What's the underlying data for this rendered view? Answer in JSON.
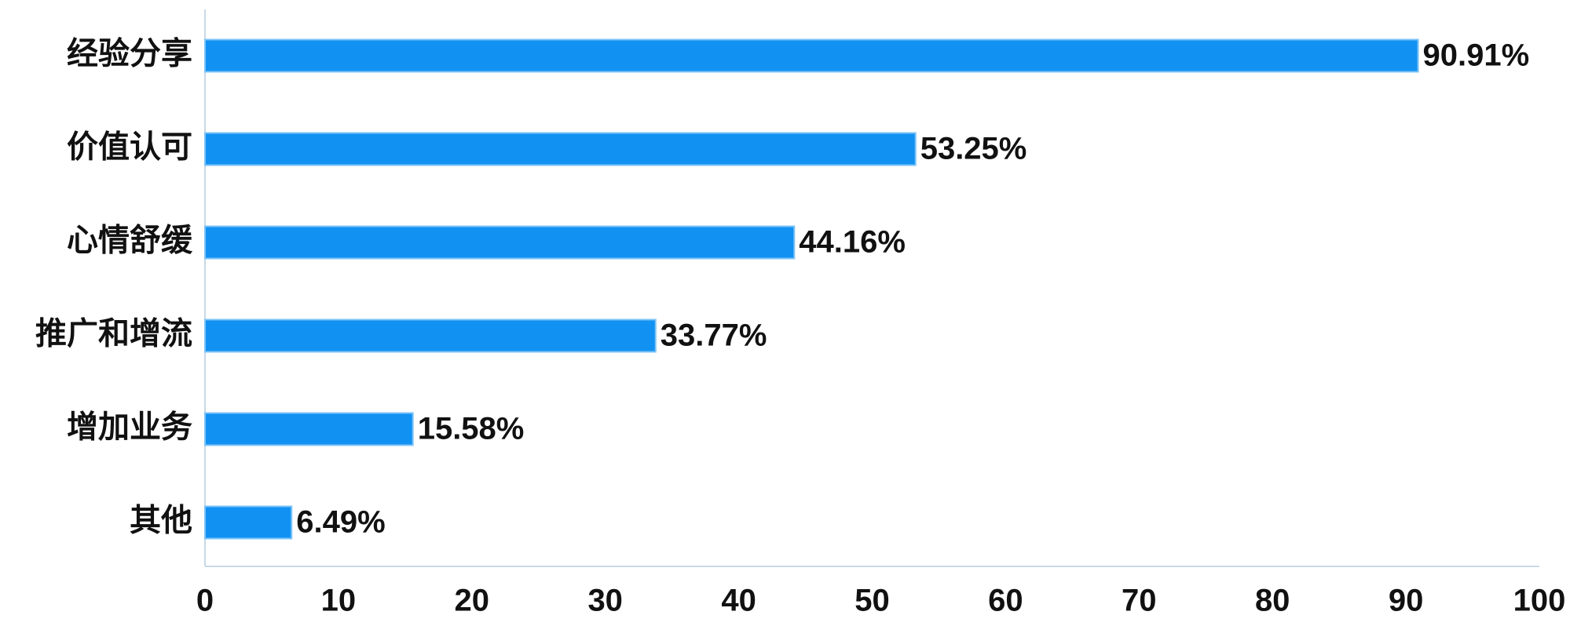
{
  "chart_data": {
    "type": "hbar",
    "categories": [
      "经验分享",
      "价值认可",
      "心情舒缓",
      "推广和增流",
      "增加业务",
      "其他"
    ],
    "values": [
      90.91,
      53.25,
      44.16,
      33.77,
      15.58,
      6.49
    ],
    "value_labels": [
      "90.91%",
      "53.25%",
      "44.16%",
      "33.77%",
      "15.58%",
      "6.49%"
    ],
    "color": "#1192f2",
    "xlim": [
      0,
      100
    ],
    "xticks": [
      0,
      10,
      20,
      30,
      40,
      50,
      60,
      70,
      80,
      90,
      100
    ],
    "grid": false
  }
}
